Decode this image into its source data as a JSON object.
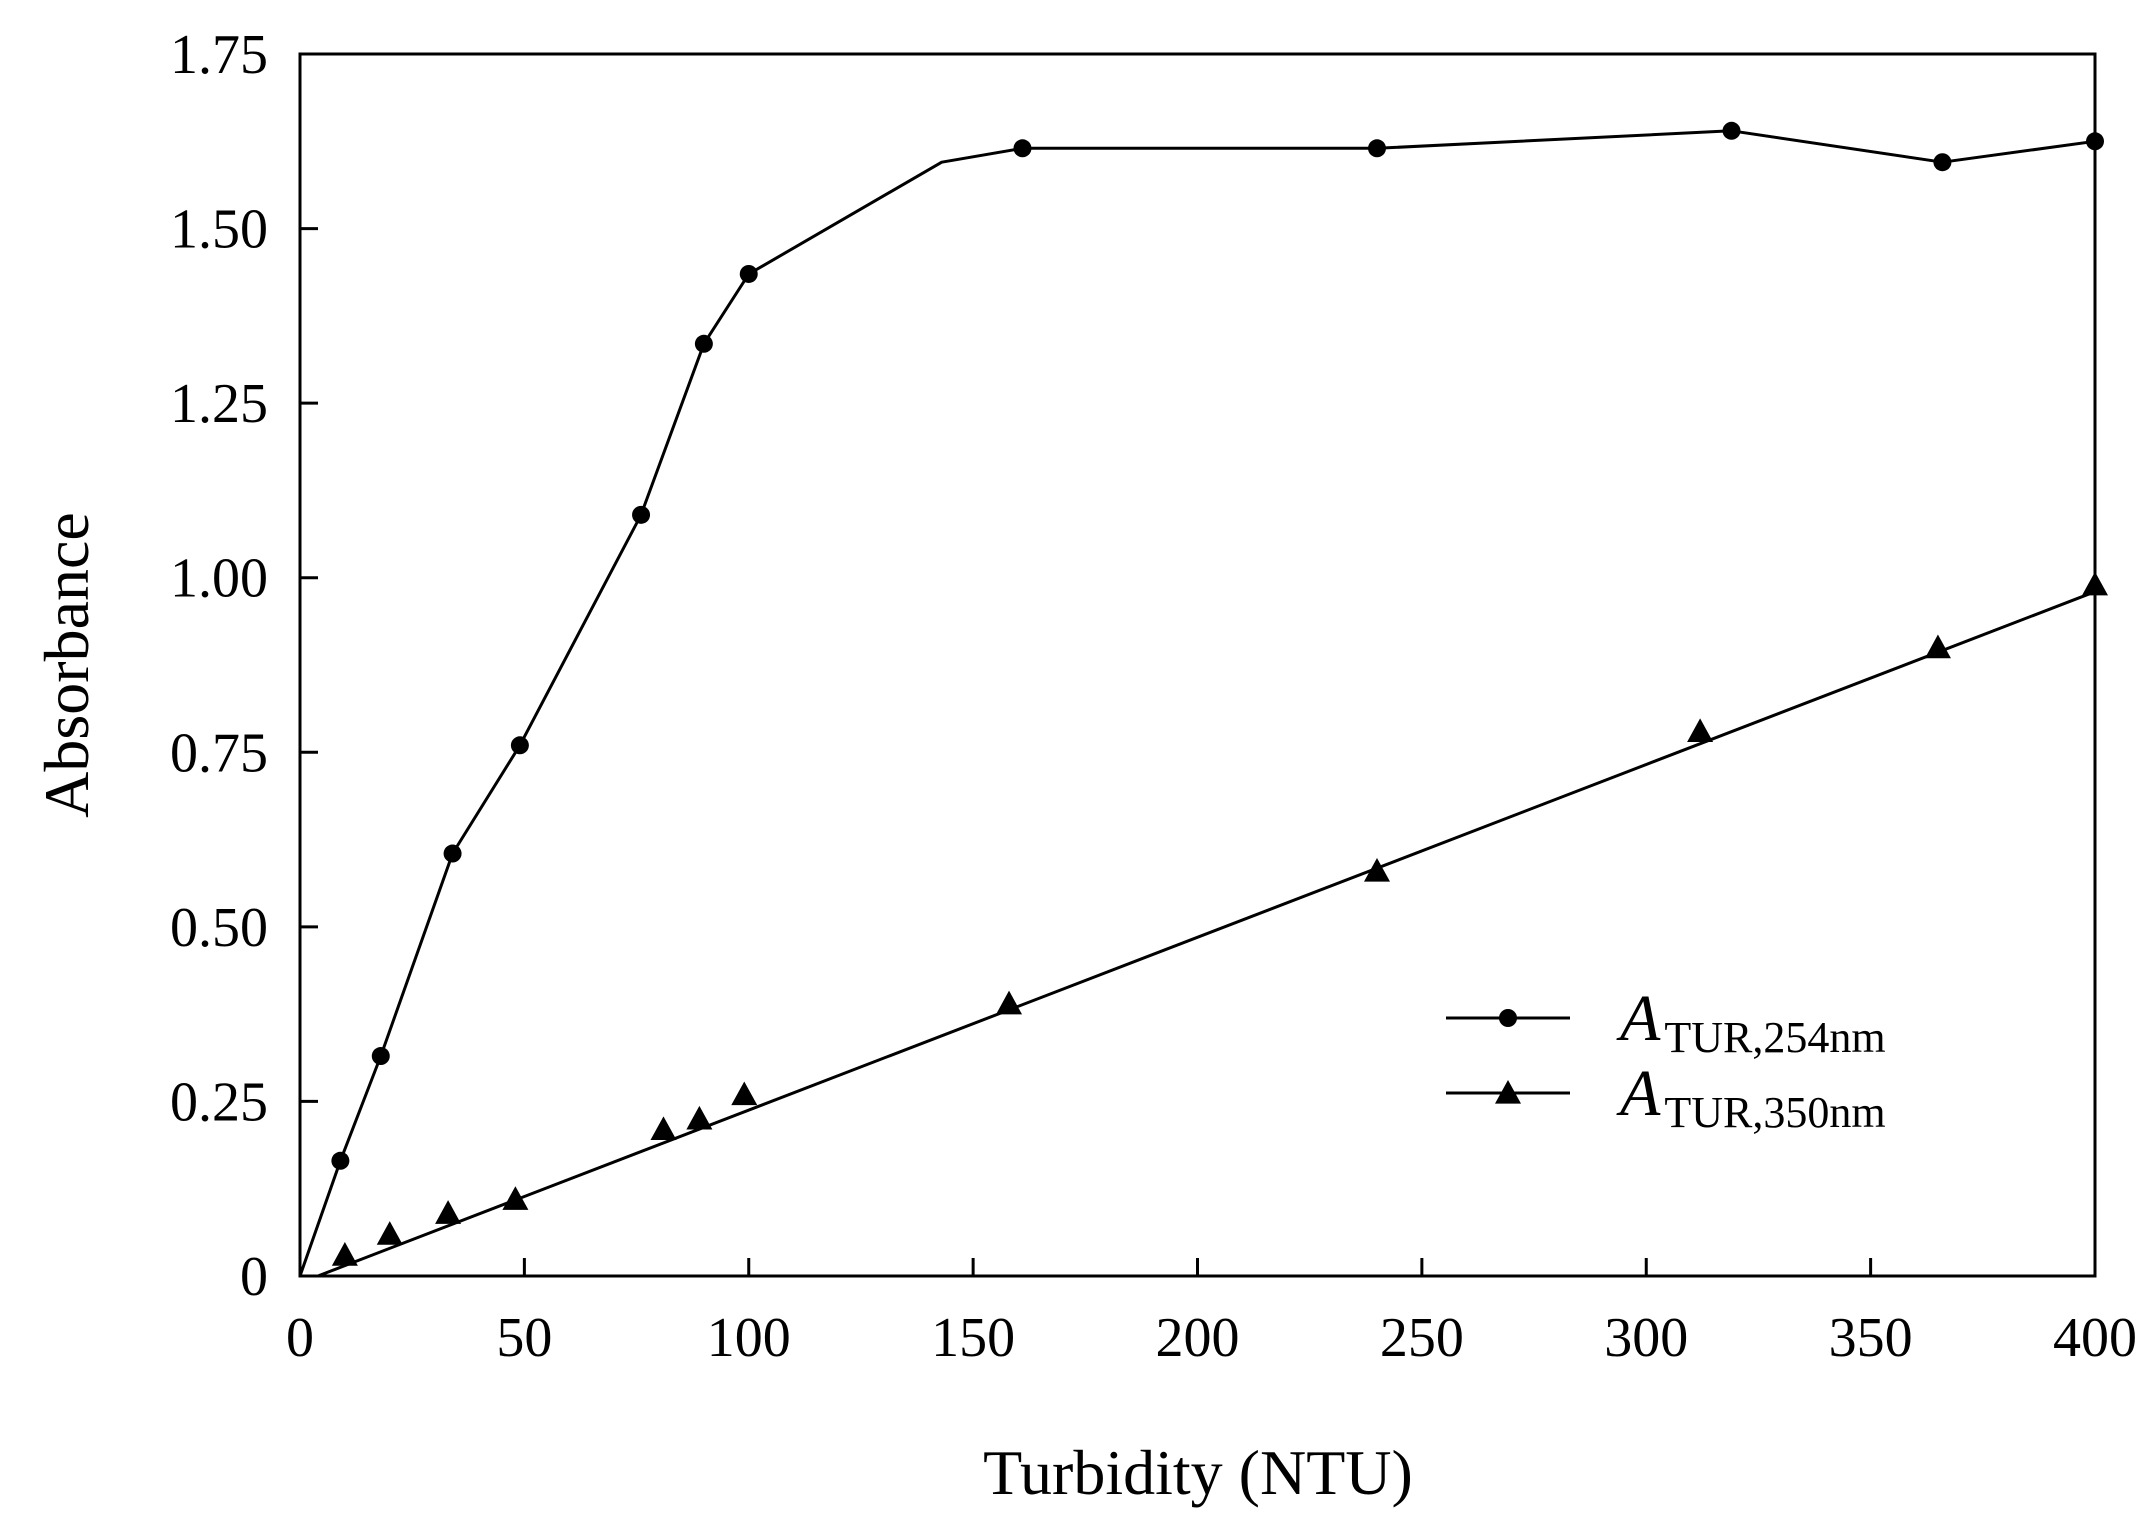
{
  "chart_data": {
    "type": "line",
    "title": "",
    "xlabel": "Turbidity (NTU)",
    "ylabel": "Absorbance",
    "xlim": [
      0,
      400
    ],
    "ylim": [
      0,
      1.75
    ],
    "x_ticks": [
      0,
      50,
      100,
      150,
      200,
      250,
      300,
      350,
      400
    ],
    "x_tick_labels": [
      "0",
      "50",
      "100",
      "150",
      "200",
      "250",
      "300",
      "350",
      "400"
    ],
    "y_ticks": [
      0,
      0.25,
      0.5,
      0.75,
      1.0,
      1.25,
      1.5,
      1.75
    ],
    "y_tick_labels": [
      "0",
      "0.25",
      "0.50",
      "0.75",
      "1.00",
      "1.25",
      "1.50",
      "1.75"
    ],
    "grid": false,
    "legend_position": "center-right",
    "series": [
      {
        "name_main": "A",
        "name_sub": "TUR,254nm",
        "marker": "circle",
        "points": [
          {
            "x": 9,
            "y": 0.165
          },
          {
            "x": 18,
            "y": 0.315
          },
          {
            "x": 34,
            "y": 0.605
          },
          {
            "x": 49,
            "y": 0.76
          },
          {
            "x": 76,
            "y": 1.09
          },
          {
            "x": 90,
            "y": 1.335
          },
          {
            "x": 100,
            "y": 1.435
          },
          {
            "x": 161,
            "y": 1.615
          },
          {
            "x": 240,
            "y": 1.615
          },
          {
            "x": 319,
            "y": 1.64
          },
          {
            "x": 366,
            "y": 1.595
          },
          {
            "x": 400,
            "y": 1.625
          }
        ],
        "line": [
          {
            "x": 0,
            "y": 0
          },
          {
            "x": 9,
            "y": 0.165
          },
          {
            "x": 18,
            "y": 0.315
          },
          {
            "x": 34,
            "y": 0.605
          },
          {
            "x": 49,
            "y": 0.76
          },
          {
            "x": 76,
            "y": 1.09
          },
          {
            "x": 90,
            "y": 1.335
          },
          {
            "x": 100,
            "y": 1.435
          },
          {
            "x": 143,
            "y": 1.595
          },
          {
            "x": 161,
            "y": 1.615
          },
          {
            "x": 240,
            "y": 1.615
          },
          {
            "x": 319,
            "y": 1.64
          },
          {
            "x": 366,
            "y": 1.595
          },
          {
            "x": 400,
            "y": 1.625
          }
        ]
      },
      {
        "name_main": "A",
        "name_sub": "TUR,350nm",
        "marker": "triangle",
        "points": [
          {
            "x": 10,
            "y": 0.03
          },
          {
            "x": 20,
            "y": 0.06
          },
          {
            "x": 33,
            "y": 0.09
          },
          {
            "x": 48,
            "y": 0.11
          },
          {
            "x": 81,
            "y": 0.21
          },
          {
            "x": 89,
            "y": 0.225
          },
          {
            "x": 99,
            "y": 0.26
          },
          {
            "x": 158,
            "y": 0.39
          },
          {
            "x": 240,
            "y": 0.58
          },
          {
            "x": 312,
            "y": 0.78
          },
          {
            "x": 365,
            "y": 0.9
          },
          {
            "x": 400,
            "y": 0.99
          }
        ],
        "line": [
          {
            "x": 4,
            "y": 0
          },
          {
            "x": 400,
            "y": 0.98
          }
        ]
      }
    ]
  }
}
